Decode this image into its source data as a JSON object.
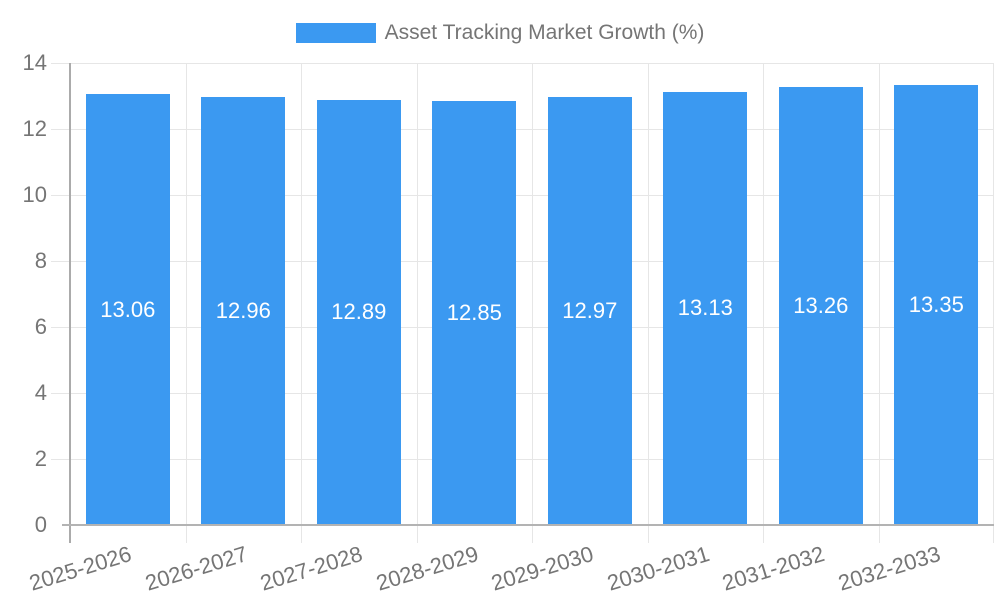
{
  "legend": {
    "position": "top",
    "entries": [
      {
        "label": "Asset Tracking Market Growth (%)",
        "swatch_color": "#3B99F1"
      }
    ]
  },
  "chart_data": {
    "type": "bar",
    "title": "Asset Tracking Market Growth (%)",
    "categories": [
      "2025-2026",
      "2026-2027",
      "2027-2028",
      "2028-2029",
      "2029-2030",
      "2030-2031",
      "2031-2032",
      "2032-2033"
    ],
    "values": [
      13.06,
      12.96,
      12.89,
      12.85,
      12.97,
      13.13,
      13.26,
      13.35
    ],
    "value_labels": [
      "13.06",
      "12.96",
      "12.89",
      "12.85",
      "12.97",
      "13.13",
      "13.26",
      "13.35"
    ],
    "xlabel": "",
    "ylabel": "",
    "ylim": [
      0,
      14
    ],
    "yticks": [
      0,
      2,
      4,
      6,
      8,
      10,
      12,
      14
    ],
    "grid": true,
    "legend_position": "top",
    "x_label_rotation_deg": -17,
    "colors": {
      "bar": "#3B99F1",
      "grid": "#E6E6E6",
      "axis": "#ABABAB",
      "zero": "#B3B3B3",
      "txt": "#757575",
      "valtxt": "#FFFFFF",
      "bg": "#FFFFFF"
    }
  }
}
